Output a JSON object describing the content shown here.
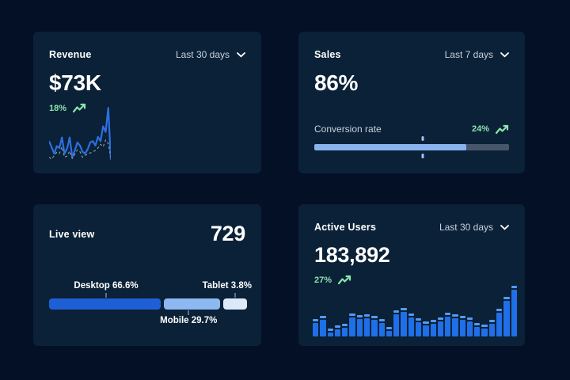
{
  "colors": {
    "page_bg": "#041026",
    "card_bg": "#0b2137",
    "text_primary": "#ffffff",
    "text_muted": "#c6d2e0",
    "delta_green": "#8be3ae",
    "line_solid": "#2d6fe0",
    "line_dashed": "#93a2b4",
    "bar_body": "#1f6fe8",
    "bar_cap": "#549af2",
    "progress_fill": "#88b3ee",
    "progress_track": "#47566b",
    "progress_tick": "#9fc4f6",
    "segment_tick": "#5b6f8f"
  },
  "cards": {
    "revenue": {
      "title": "Revenue",
      "period": "Last 30 days",
      "period_icon": "chevron-down-icon",
      "value": "$73K",
      "delta": "18%",
      "delta_icon": "trend-up-icon",
      "chart_data": {
        "type": "line",
        "axes_hidden": true,
        "grid": false,
        "series": [
          {
            "name": "current",
            "style": "solid",
            "y": [
              62,
              72,
              82,
              70,
              73,
              56,
              82,
              74,
              56,
              88,
              77,
              64,
              69,
              79,
              82,
              75,
              64,
              62,
              69,
              55,
              62,
              38,
              47,
              8,
              92
            ]
          },
          {
            "name": "previous",
            "style": "dashed",
            "y": [
              88,
              91,
              85,
              80,
              82,
              71,
              88,
              86,
              78,
              90,
              83,
              76,
              79,
              88,
              85,
              83,
              81,
              79,
              77,
              73,
              67,
              71,
              60,
              66,
              88
            ]
          }
        ]
      }
    },
    "sales": {
      "title": "Sales",
      "period": "Last 7 days",
      "period_icon": "chevron-down-icon",
      "value": "86%",
      "metric_label": "Conversion rate",
      "delta": "24%",
      "delta_icon": "trend-up-icon",
      "chart_data": {
        "type": "progress-bar",
        "fill_pct": 78,
        "marker_pct": 55.5
      }
    },
    "live_view": {
      "title": "Live view",
      "value": "729",
      "chart_data": {
        "type": "stacked-bar",
        "segments": [
          {
            "label": "Desktop 66.6%",
            "pct": 66.6,
            "width_pct": 57,
            "center_pct": 28.8,
            "color": "#1e5fd6",
            "label_pos": "top",
            "label_align": "center"
          },
          {
            "label": "Mobile 29.7%",
            "pct": 29.7,
            "width_pct": 28.5,
            "center_pct": 70.5,
            "color": "#8db8f2",
            "label_pos": "bottom",
            "label_align": "center"
          },
          {
            "label": "Tablet 3.8%",
            "pct": 3.8,
            "width_pct": 12,
            "center_pct": 94,
            "color": "#dce9fb",
            "label_pos": "top",
            "label_align": "right"
          }
        ]
      }
    },
    "active_users": {
      "title": "Active Users",
      "period": "Last 30 days",
      "period_icon": "chevron-down-icon",
      "value": "183,892",
      "delta": "27%",
      "delta_icon": "trend-up-icon",
      "chart_data": {
        "type": "bar",
        "values_pct": [
          34,
          40,
          16,
          22,
          25,
          46,
          42,
          43,
          41,
          35,
          19,
          52,
          56,
          46,
          36,
          30,
          33,
          38,
          47,
          43,
          40,
          37,
          26,
          23,
          33,
          55,
          78,
          100
        ]
      }
    }
  }
}
